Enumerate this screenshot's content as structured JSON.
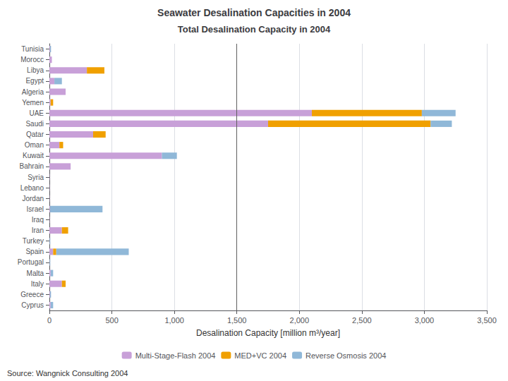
{
  "chart_data": {
    "type": "bar",
    "orientation": "horizontal",
    "stacked": true,
    "title": "Total Desalination Capacity in 2004",
    "subtitle": "Seawater Desalination Capacities in 2004",
    "xlabel": "Desalination Capacity [million m³/year]",
    "annotations": [
      "Source: Wangnick Consulting 2004"
    ],
    "categories": [
      "Tunisia",
      "Morocc",
      "Libya",
      "Egypt",
      "Algeria",
      "Yemen",
      "UAE",
      "Saudi",
      "Qatar",
      "Oman",
      "Kuwait",
      "Bahrain",
      "Syria",
      "Lebano",
      "Jordan",
      "Israel",
      "Iraq",
      "Iran",
      "Turkey",
      "Spain",
      "Portugal",
      "Malta",
      "Italy",
      "Greece",
      "Cyprus"
    ],
    "series": [
      {
        "name": "Multi-Stage-Flash 2004",
        "color": "#c8a0d8",
        "values": [
          5,
          20,
          300,
          40,
          130,
          10,
          2100,
          1750,
          350,
          80,
          900,
          170,
          2,
          2,
          2,
          5,
          2,
          100,
          2,
          30,
          2,
          10,
          100,
          5,
          10
        ]
      },
      {
        "name": "MED+VC 2004",
        "color": "#f0a000",
        "values": [
          0,
          0,
          140,
          0,
          0,
          20,
          880,
          1300,
          100,
          30,
          0,
          0,
          0,
          0,
          0,
          0,
          0,
          50,
          0,
          25,
          0,
          0,
          30,
          0,
          0
        ]
      },
      {
        "name": "Reverse Osmosis 2004",
        "color": "#90b8d8",
        "values": [
          8,
          0,
          0,
          60,
          0,
          0,
          270,
          170,
          0,
          0,
          120,
          0,
          0,
          0,
          0,
          420,
          0,
          0,
          5,
          580,
          5,
          20,
          0,
          8,
          20
        ]
      }
    ],
    "reference_line": 1500,
    "xlim": [
      0,
      3500
    ],
    "xticks": [
      0,
      500,
      1000,
      1500,
      2000,
      2500,
      3000,
      3500
    ],
    "grid": true,
    "legend": "bottom"
  }
}
